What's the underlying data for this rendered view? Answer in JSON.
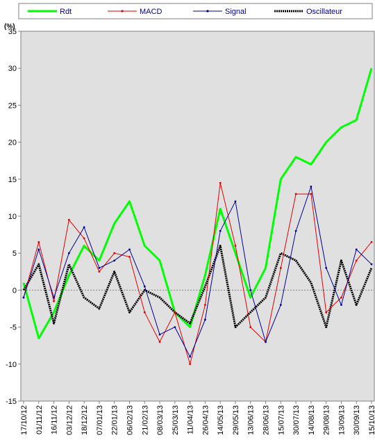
{
  "chart_data": {
    "type": "line",
    "ylabel": "(%)",
    "ylim": [
      -15,
      35
    ],
    "yticks": [
      35,
      30,
      25,
      20,
      15,
      10,
      5,
      0,
      -5,
      -10,
      -15
    ],
    "grid": false,
    "zero_line": true,
    "plot_background": "#e0e0e0",
    "legend_placement": "top",
    "x_tick_labels": [
      "17/10/12",
      "01/11/12",
      "16/11/12",
      "03/12/12",
      "18/12/12",
      "07/01/13",
      "22/01/13",
      "06/02/13",
      "21/02/13",
      "08/03/13",
      "25/03/13",
      "11/04/13",
      "26/04/13",
      "14/05/13",
      "29/05/13",
      "13/06/13",
      "28/06/13",
      "15/07/13",
      "30/07/13",
      "14/08/13",
      "29/08/13",
      "13/09/13",
      "30/09/13",
      "15/10/13"
    ],
    "x": [
      0,
      1,
      2,
      3,
      4,
      5,
      6,
      7,
      8,
      9,
      10,
      11,
      12,
      13,
      14,
      15,
      16,
      17,
      18,
      19,
      20,
      21,
      22,
      23
    ],
    "series": [
      {
        "name": "Rdt",
        "color": "#00ff00",
        "width": 3,
        "marker": "none",
        "values": [
          1,
          -6.5,
          -3,
          2,
          6,
          4,
          9,
          12,
          6,
          4,
          -3,
          -5,
          2,
          11,
          5,
          -1,
          3,
          15,
          18,
          17,
          20,
          22,
          23,
          30
        ]
      },
      {
        "name": "MACD",
        "color": "#e00000",
        "width": 1,
        "marker": "dot",
        "values": [
          -1,
          6.5,
          -1.5,
          9.5,
          7,
          2.5,
          5,
          4.5,
          -3,
          -7,
          -3,
          -10,
          -2,
          14.5,
          6,
          -5,
          -7,
          3,
          13,
          13,
          -3,
          -1,
          4,
          6.5
        ]
      },
      {
        "name": "Signal",
        "color": "#000090",
        "width": 1,
        "marker": "dot",
        "values": [
          -1,
          5.5,
          -1,
          5,
          8.5,
          3,
          4,
          5.5,
          0.5,
          -6,
          -5,
          -9,
          -4,
          8,
          12,
          0,
          -7,
          -2,
          8,
          14,
          3,
          -2,
          5.5,
          3.5
        ]
      },
      {
        "name": "Oscillateur",
        "color": "#000000",
        "width": 3,
        "marker": "dash",
        "values": [
          0,
          3.5,
          -4.5,
          3.5,
          -1,
          -2.5,
          2.5,
          -3,
          0,
          -1,
          -3,
          -4.5,
          0.5,
          6,
          -5,
          -3,
          -1,
          5,
          4,
          1,
          -5,
          4,
          -2,
          3
        ]
      }
    ]
  }
}
